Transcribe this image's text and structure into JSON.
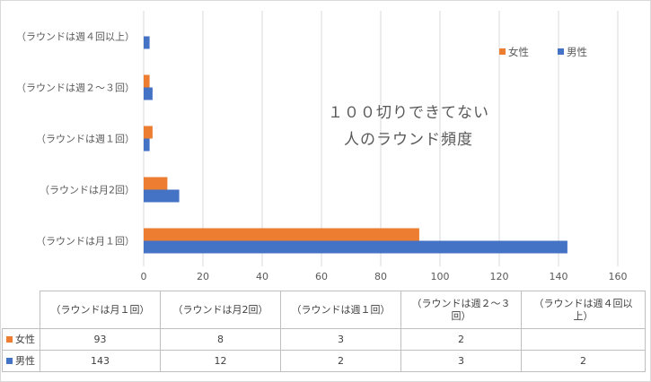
{
  "chart_data": {
    "type": "bar",
    "orientation": "horizontal",
    "categories": [
      "（ラウンドは月１回）",
      "（ラウンドは月2回）",
      "（ラウンドは週１回）",
      "（ラウンドは週２～３回）",
      "（ラウンドは週４回以上）"
    ],
    "table_headers": [
      "（ラウンドは月１回）",
      "（ラウンドは月2回）",
      "（ラウンドは週１回）",
      "（ラウンドは週２～３\n回）",
      "（ラウンドは週４回以\n上）"
    ],
    "series": [
      {
        "name": "女性",
        "color": "#ed7d31",
        "values": [
          93,
          8,
          3,
          2,
          null
        ]
      },
      {
        "name": "男性",
        "color": "#4472c4",
        "values": [
          143,
          12,
          2,
          3,
          2
        ]
      }
    ],
    "xlim": [
      0,
      160
    ],
    "xticks": [
      "0",
      "20",
      "40",
      "60",
      "80",
      "100",
      "120",
      "140",
      "160"
    ],
    "annotation": [
      "１００切りできてない",
      "人のラウンド頻度"
    ],
    "legend_position": "top-right",
    "legend_order": [
      "女性",
      "男性"
    ],
    "grid": true
  }
}
